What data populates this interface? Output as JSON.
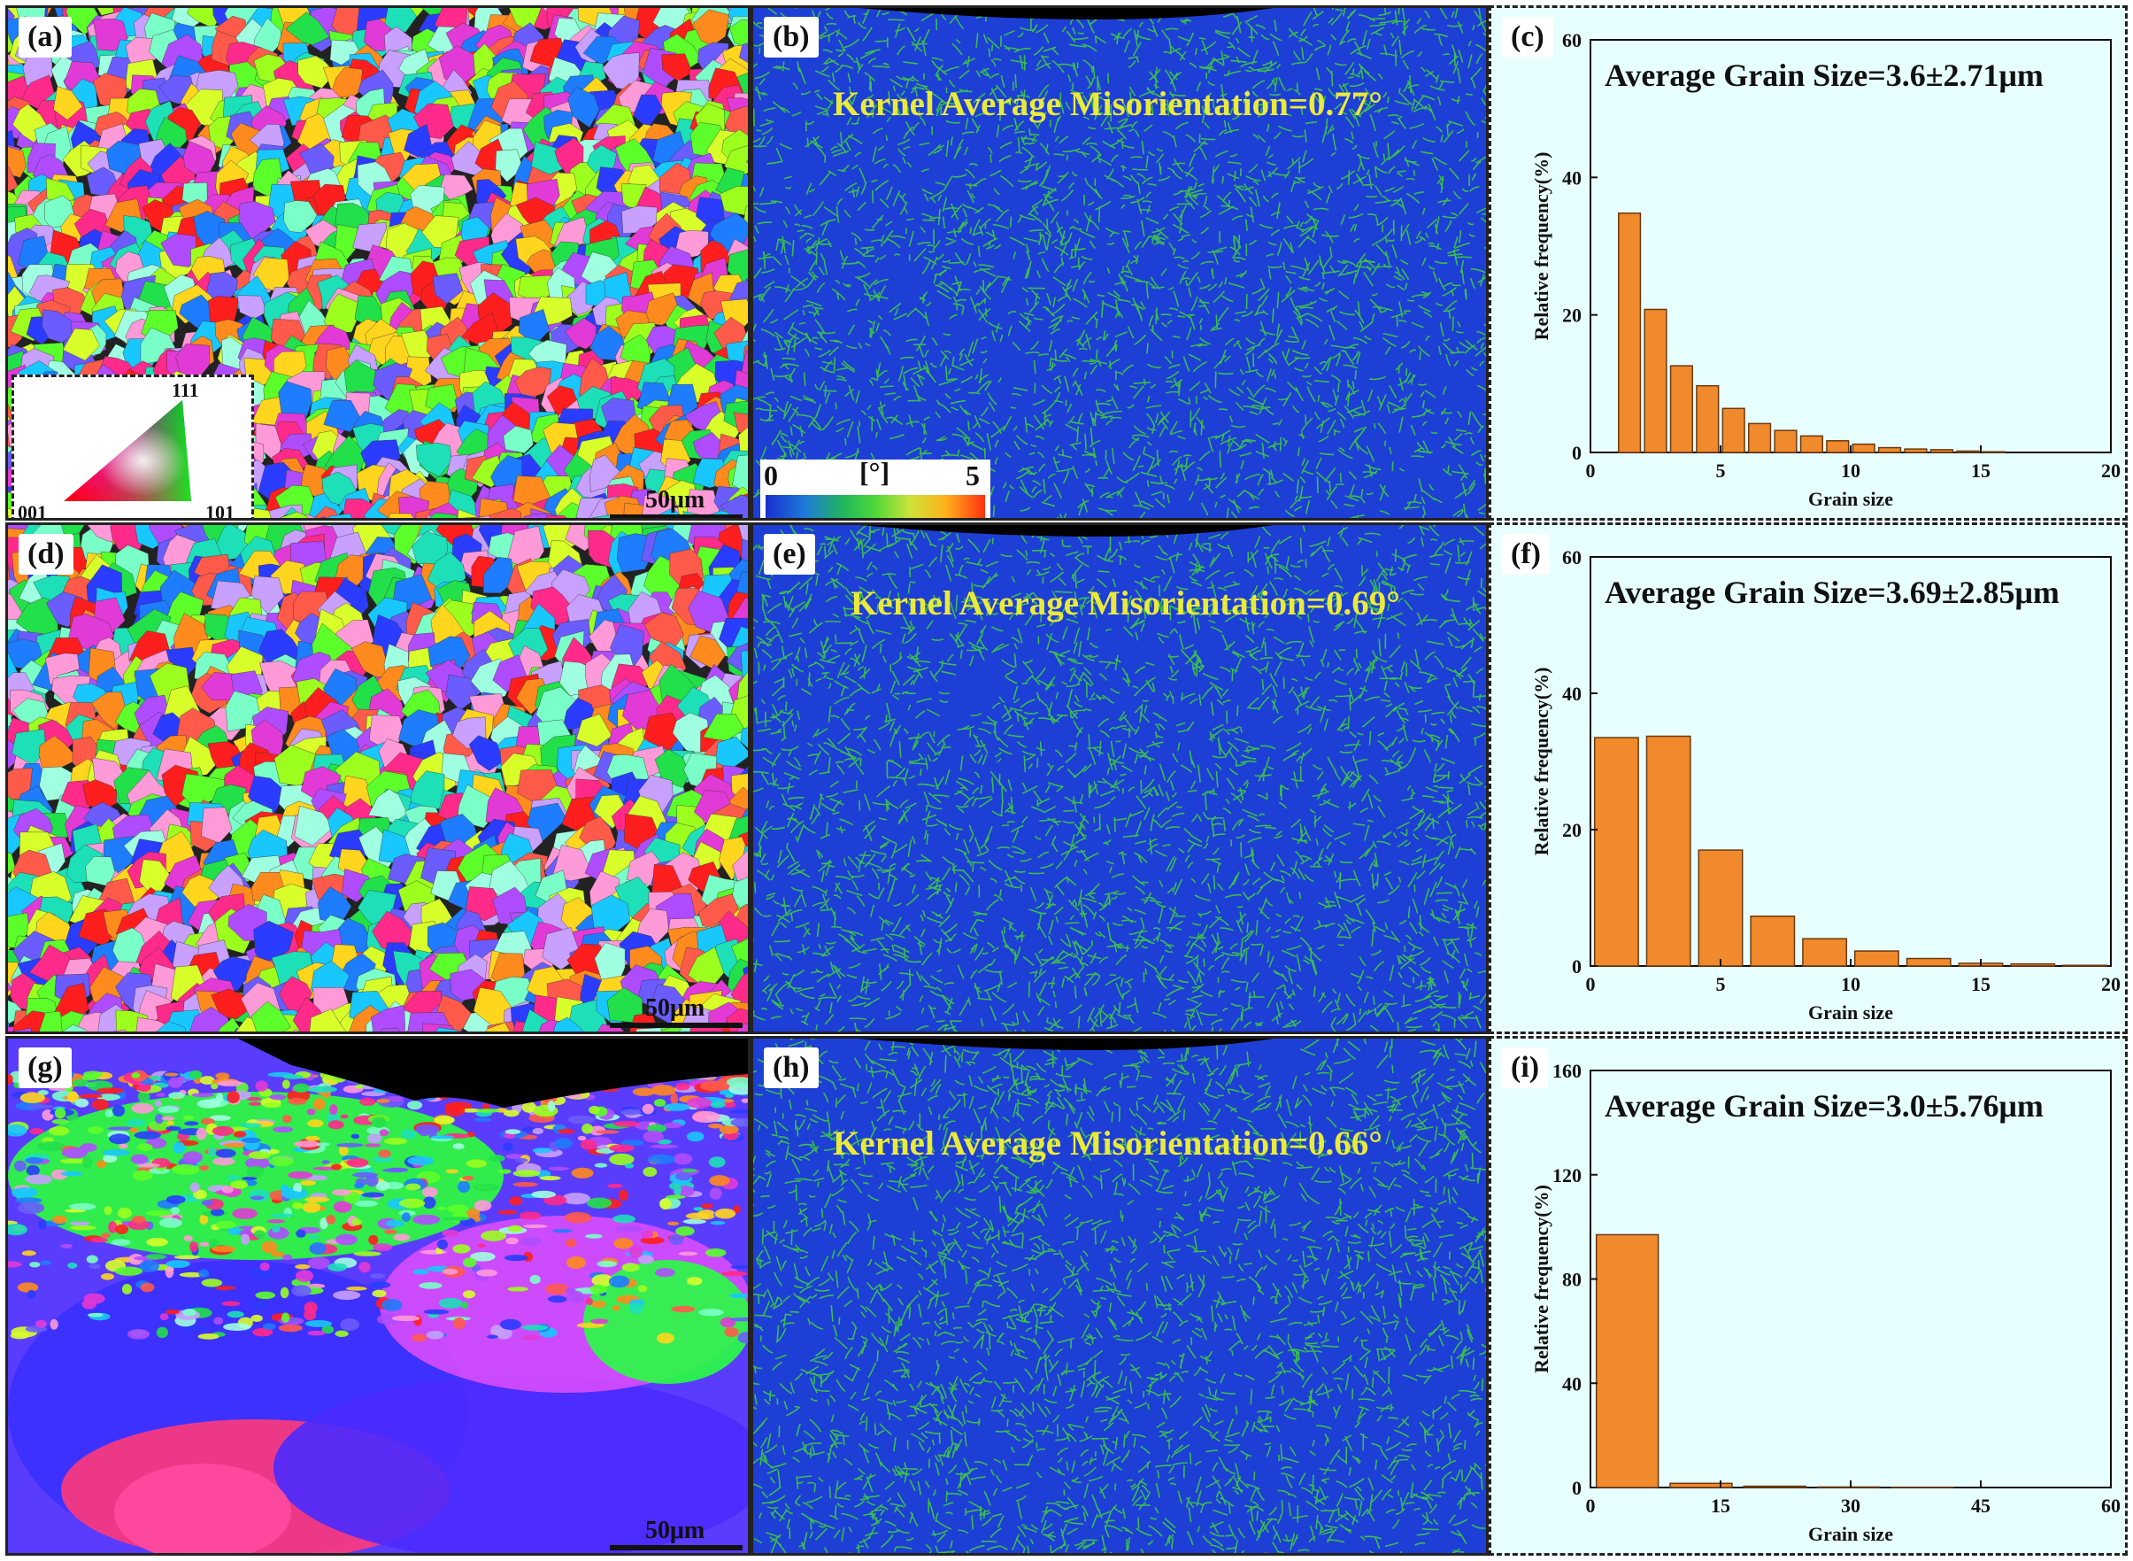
{
  "panels": {
    "a": {
      "letter": "(a)",
      "scalebar": "50μm",
      "ipf_legend": {
        "top": "111",
        "left": "001",
        "right": "101"
      }
    },
    "b": {
      "letter": "(b)",
      "kam_text": "Kernel Average Misorientation=0.77°",
      "kam_legend": {
        "min": "0",
        "unit": "[°]",
        "max": "5"
      }
    },
    "c": {
      "letter": "(c)"
    },
    "d": {
      "letter": "(d)",
      "scalebar": "50μm"
    },
    "e": {
      "letter": "(e)",
      "kam_text": "Kernel Average Misorientation=0.69°"
    },
    "f": {
      "letter": "(f)"
    },
    "g": {
      "letter": "(g)",
      "scalebar": "50μm"
    },
    "h": {
      "letter": "(h)",
      "kam_text": "Kernel Average Misorientation=0.66°"
    },
    "i": {
      "letter": "(i)"
    }
  },
  "colors": {
    "bar_fill": "#f08a2c",
    "bar_stroke": "#6b3a10",
    "kam_text": "#eaea3a",
    "chart_bg": "#e8ffff",
    "kam_base": "#1d3fd6",
    "kam_line": "#3fd23a"
  },
  "chart_data": [
    {
      "id": "c",
      "type": "bar",
      "title": "Average Grain Size=3.6±2.71μm",
      "xlabel": "Grain size",
      "ylabel": "Relative frequency(%)",
      "xlim": [
        0,
        20
      ],
      "ylim": [
        0,
        60
      ],
      "xticks": [
        "0",
        "5",
        "10",
        "15",
        "20"
      ],
      "yticks": [
        "0",
        "20",
        "40",
        "60"
      ],
      "bin_width": 1,
      "x": [
        1.5,
        2.5,
        3.5,
        4.5,
        5.5,
        6.5,
        7.5,
        8.5,
        9.5,
        10.5,
        11.5,
        12.5,
        13.5,
        14.5,
        15.5
      ],
      "values": [
        34.8,
        20.8,
        12.6,
        9.7,
        6.4,
        4.2,
        3.2,
        2.4,
        1.7,
        1.2,
        0.7,
        0.5,
        0.4,
        0.2,
        0.1
      ]
    },
    {
      "id": "f",
      "type": "bar",
      "title": "Average Grain Size=3.69±2.85μm",
      "xlabel": "Grain size",
      "ylabel": "Relative frequency(%)",
      "xlim": [
        0,
        20
      ],
      "ylim": [
        0,
        60
      ],
      "xticks": [
        "0",
        "5",
        "10",
        "15",
        "20"
      ],
      "yticks": [
        "0",
        "20",
        "40",
        "60"
      ],
      "bin_width": 2,
      "x": [
        1,
        3,
        5,
        7,
        9,
        11,
        13,
        15,
        17,
        19
      ],
      "values": [
        33.5,
        33.7,
        17.0,
        7.3,
        4.0,
        2.2,
        1.1,
        0.4,
        0.3,
        0.1
      ]
    },
    {
      "id": "i",
      "type": "bar",
      "title": "Average Grain Size=3.0±5.76μm",
      "xlabel": "Grain size",
      "ylabel": "Relative frequency(%)",
      "xlim": [
        0,
        60
      ],
      "ylim": [
        0,
        160
      ],
      "xticks": [
        "0",
        "15",
        "30",
        "45",
        "60"
      ],
      "yticks": [
        "0",
        "40",
        "80",
        "120",
        "160"
      ],
      "bin_width": 8.5,
      "x": [
        4.25,
        12.75,
        21.25,
        29.75,
        38.25
      ],
      "values": [
        97.0,
        1.6,
        0.5,
        0.2,
        0.1
      ]
    }
  ]
}
